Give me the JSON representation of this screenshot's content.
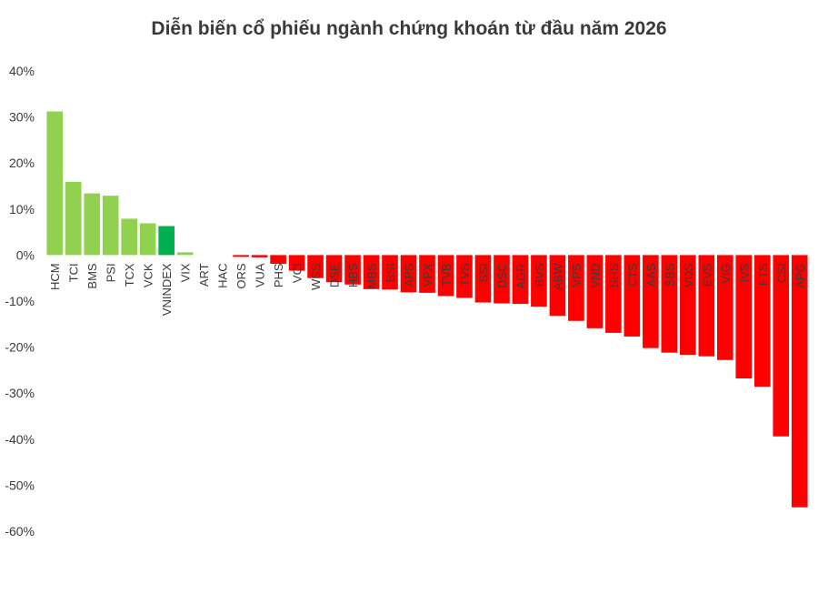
{
  "chart_data": {
    "type": "bar",
    "title": "Diễn biến cổ phiếu ngành chứng khoán từ đầu năm 2026",
    "xlabel": "",
    "ylabel": "",
    "ylim": [
      -60,
      40
    ],
    "yticks": [
      40,
      30,
      20,
      10,
      0,
      -10,
      -20,
      -30,
      -40,
      -50,
      -60
    ],
    "ytick_labels": [
      "40%",
      "30%",
      "20%",
      "10%",
      "0%",
      "-10%",
      "-20%",
      "-30%",
      "-40%",
      "-50%",
      "-60%"
    ],
    "grid": false,
    "legend": "none",
    "categories": [
      "HCM",
      "TCI",
      "BMS",
      "PSI",
      "TCX",
      "VCK",
      "VNINDEX",
      "VIX",
      "ART",
      "HAC",
      "ORS",
      "VUA",
      "PHS",
      "VCI",
      "WSS",
      "DSE",
      "HBS",
      "MBS",
      "BSI",
      "APS",
      "VPX",
      "TVB",
      "TVS",
      "SSI",
      "DSC",
      "AGR",
      "BVS",
      "ABW",
      "VPS",
      "VND",
      "SHS",
      "CTS",
      "AAS",
      "SBS",
      "VDS",
      "EVS",
      "VIG",
      "IVS",
      "FTS",
      "CSI",
      "APG"
    ],
    "values": [
      31.2,
      15.9,
      13.4,
      12.9,
      7.9,
      6.9,
      6.3,
      0.6,
      0,
      0,
      -0.4,
      -0.5,
      -1.9,
      -3.4,
      -5.0,
      -5.9,
      -6.4,
      -7.4,
      -7.5,
      -8.1,
      -8.2,
      -8.9,
      -9.3,
      -10.3,
      -10.5,
      -10.6,
      -11.2,
      -13.2,
      -14.3,
      -15.9,
      -16.9,
      -17.7,
      -20.2,
      -21.2,
      -21.7,
      -22.0,
      -22.8,
      -26.8,
      -28.6,
      -39.4,
      -54.8
    ],
    "colors": {
      "positive": "#92d050",
      "index": "#00b050",
      "negative": "#ff0000"
    },
    "index_category": "VNINDEX"
  }
}
